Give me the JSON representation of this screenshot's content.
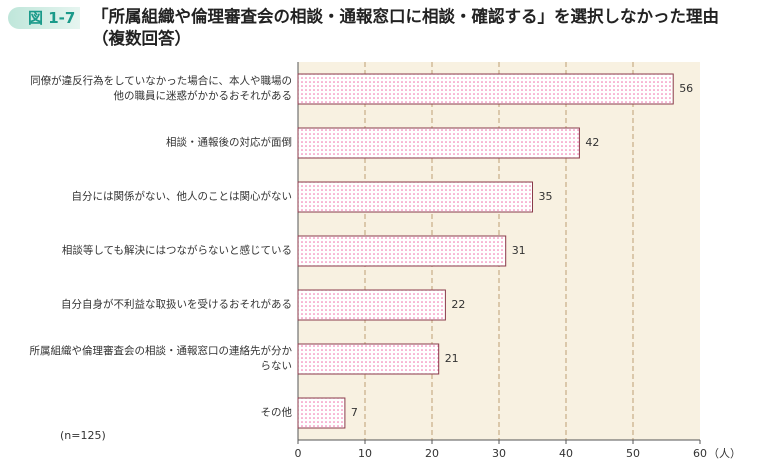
{
  "figure_label": "図 1-7",
  "chart_data": {
    "type": "bar",
    "orientation": "horizontal",
    "title": "「所属組織や倫理審査会の相談・通報窓口に相談・確認する」を選択しなかった理由（複数回答）",
    "categories": [
      "同僚が違反行為をしていなかった場合に、本人や職場の他の職員に迷惑がかかるおそれがある",
      "相談・通報後の対応が面倒",
      "自分には関係がない、他人のことは関心がない",
      "相談等しても解決にはつながらないと感じている",
      "自分自身が不利益な取扱いを受けるおそれがある",
      "所属組織や倫理審査会の相談・通報窓口の連絡先が分からない",
      "その他"
    ],
    "values": [
      56,
      42,
      35,
      31,
      22,
      21,
      7
    ],
    "color": "#f06aa8",
    "xlim": [
      0,
      60
    ],
    "xticks": [
      0,
      10,
      20,
      30,
      40,
      50,
      60
    ],
    "xlabel": "（人）",
    "note": "(n=125)",
    "grid": true
  }
}
